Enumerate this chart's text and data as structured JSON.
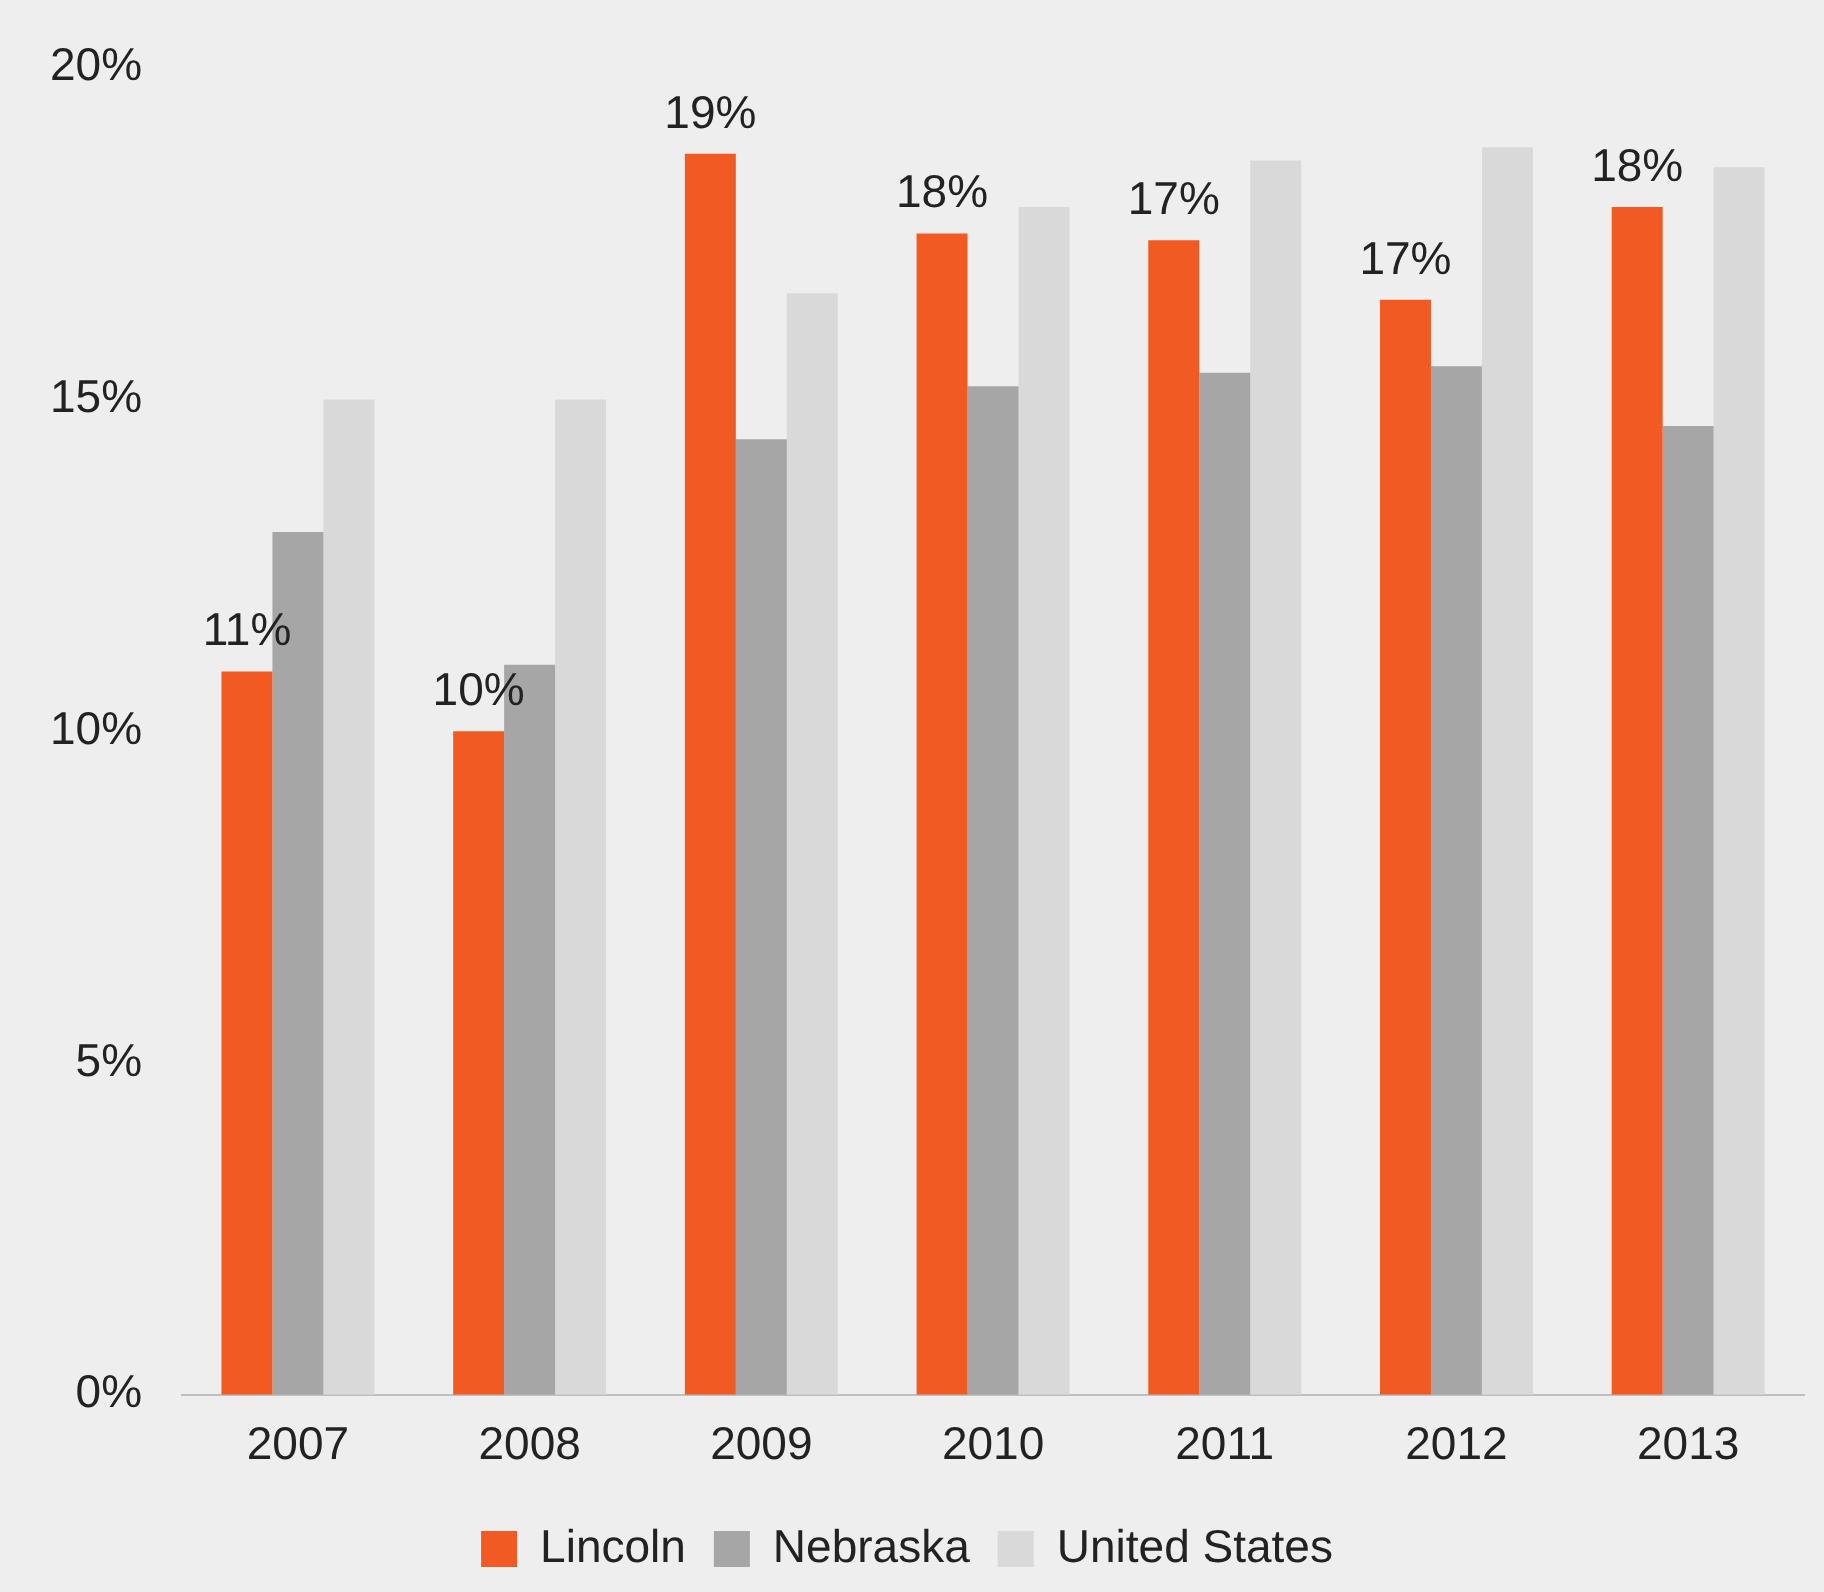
{
  "chart_data": {
    "type": "bar",
    "categories": [
      "2007",
      "2008",
      "2009",
      "2010",
      "2011",
      "2012",
      "2013"
    ],
    "series": [
      {
        "name": "Lincoln",
        "color": "#f15a22",
        "values": [
          10.9,
          10.0,
          18.7,
          17.5,
          17.4,
          16.5,
          17.9
        ],
        "value_labels": [
          "11%",
          "10%",
          "19%",
          "18%",
          "17%",
          "17%",
          "18%"
        ]
      },
      {
        "name": "Nebraska",
        "color": "#a6a6a6",
        "values": [
          13.0,
          11.0,
          14.4,
          15.2,
          15.4,
          15.5,
          14.6
        ]
      },
      {
        "name": "United States",
        "color": "#d9d9d9",
        "values": [
          15.0,
          15.0,
          16.6,
          17.9,
          18.6,
          18.8,
          18.5
        ]
      }
    ],
    "ylim": [
      0,
      20
    ],
    "yticks": [
      {
        "value": 0,
        "label": "0%"
      },
      {
        "value": 5,
        "label": "5%"
      },
      {
        "value": 10,
        "label": "10%"
      },
      {
        "value": 15,
        "label": "15%"
      },
      {
        "value": 20,
        "label": "20%"
      }
    ],
    "grid": false,
    "legend": "bottom"
  }
}
